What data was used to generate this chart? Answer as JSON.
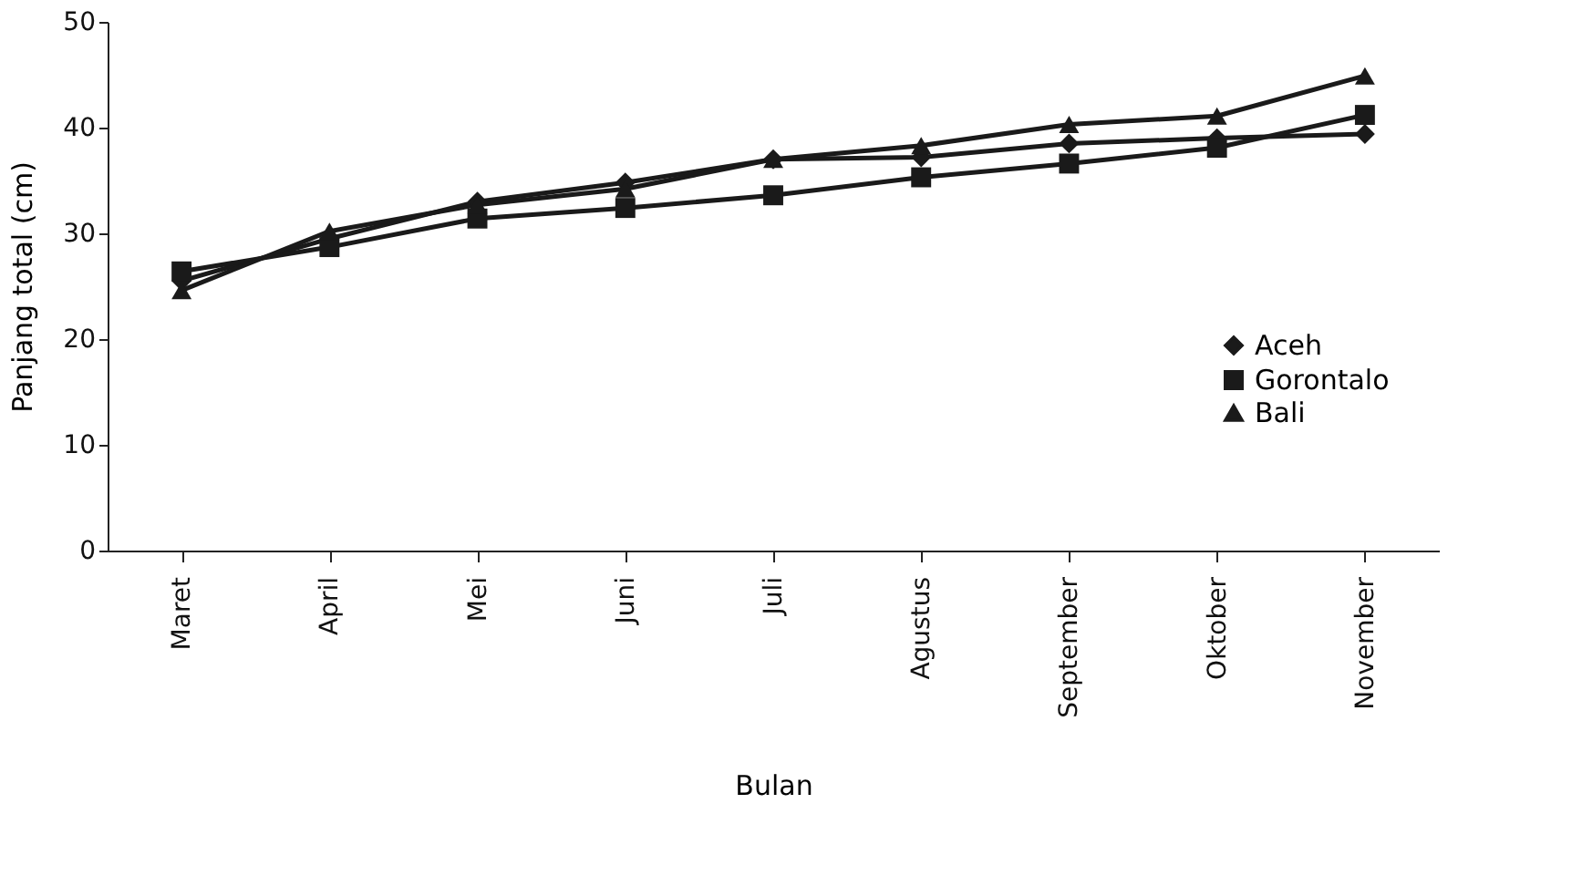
{
  "chart_data": {
    "type": "line",
    "xlabel": "Bulan",
    "ylabel": "Panjang total (cm)",
    "categories": [
      "Maret",
      "April",
      "Mei",
      "Juni",
      "Juli",
      "Agustus",
      "September",
      "Oktober",
      "November"
    ],
    "series": [
      {
        "name": "Aceh",
        "color": "#1a1a1a",
        "marker": "diamond",
        "values": [
          25.5,
          29.5,
          33.0,
          34.8,
          37.0,
          37.2,
          38.5,
          39.0,
          39.4
        ]
      },
      {
        "name": "Gorontalo",
        "color": "#1a1a1a",
        "marker": "square",
        "values": [
          26.4,
          28.7,
          31.4,
          32.4,
          33.6,
          35.3,
          36.6,
          38.1,
          41.2
        ]
      },
      {
        "name": "Bali",
        "color": "#1a1a1a",
        "marker": "triangle",
        "values": [
          24.6,
          30.2,
          32.7,
          34.2,
          37.0,
          38.3,
          40.3,
          41.1,
          44.9
        ]
      }
    ],
    "ylim": [
      0,
      50
    ],
    "yticks": [
      0,
      10,
      20,
      30,
      40,
      50
    ],
    "grid": false,
    "legend": "right",
    "line_style": "solid"
  }
}
